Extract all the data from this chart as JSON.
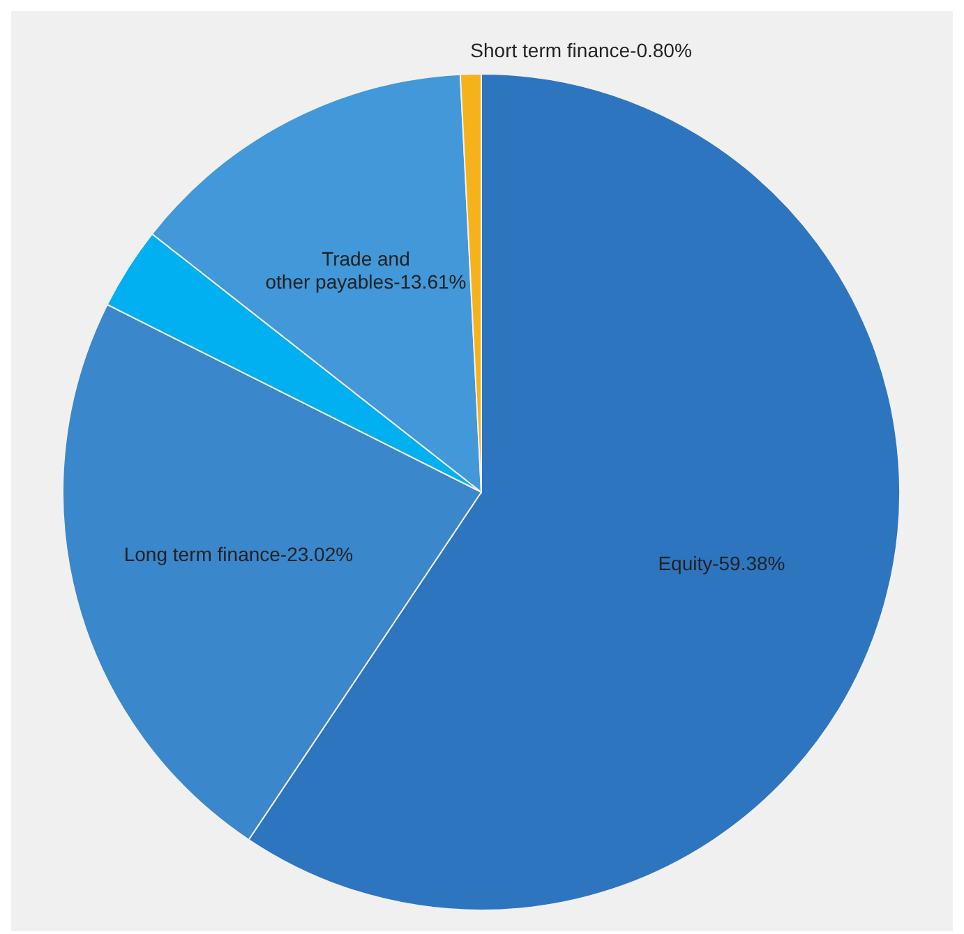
{
  "chart_data": {
    "type": "pie",
    "categories": [
      "Equity",
      "Long term finance",
      null,
      "Trade and other payables",
      "Short term finance"
    ],
    "values": [
      59.38,
      23.02,
      3.19,
      13.61,
      0.8
    ],
    "value_labels": [
      "59.38%",
      "23.02%",
      null,
      "13.61%",
      "0.80%"
    ],
    "colors": [
      "#2e75c0",
      "#3a87cc",
      "#00b0f0",
      "#4298d8",
      "#f5b21b"
    ],
    "legend": false
  }
}
